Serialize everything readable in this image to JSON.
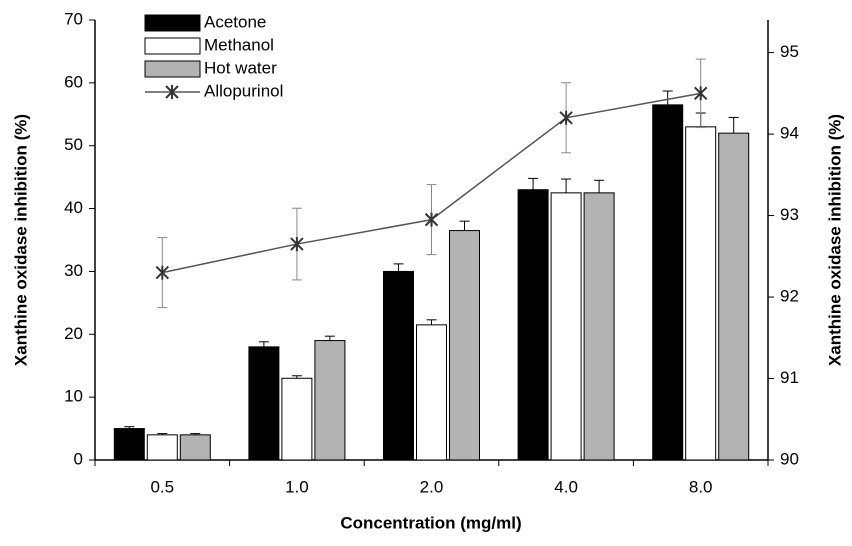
{
  "chart_data": {
    "type": "bar",
    "x_label": "Concentration (mg/ml)",
    "y_label": "Xanthine oxidase inhibition  (%)",
    "y2_label": "Xanthine oxidase inhibition  (%)",
    "categories": [
      "0.5",
      "1.0",
      "2.0",
      "4.0",
      "8.0"
    ],
    "series": [
      {
        "name": "Acetone",
        "type": "bar",
        "color": "#000000",
        "values": [
          5,
          18,
          30,
          43,
          56.5
        ],
        "errors": [
          0.3,
          0.8,
          1.2,
          1.8,
          2.2
        ]
      },
      {
        "name": "Methanol",
        "type": "bar",
        "color": "#ffffff",
        "values": [
          4,
          13,
          21.5,
          42.5,
          53
        ],
        "errors": [
          0.2,
          0.4,
          0.8,
          2.2,
          2.2
        ]
      },
      {
        "name": "Hot water",
        "type": "bar",
        "color": "#b3b3b3",
        "values": [
          4,
          19,
          36.5,
          42.5,
          52
        ],
        "errors": [
          0.2,
          0.7,
          1.5,
          2,
          2.5
        ]
      },
      {
        "name": "Allopurinol",
        "type": "line",
        "axis": "y2",
        "color": "#555555",
        "values": [
          92.3,
          92.65,
          92.95,
          94.2,
          94.5
        ],
        "errors": [
          0.43,
          0.44,
          0.43,
          0.43,
          0.42
        ]
      }
    ],
    "ylim": [
      0,
      70
    ],
    "yticks": [
      0,
      10,
      20,
      30,
      40,
      50,
      60,
      70
    ],
    "y2lim": [
      90,
      95.4
    ],
    "y2ticks": [
      90,
      91,
      92,
      93,
      94,
      95
    ],
    "legend": "upper left"
  }
}
